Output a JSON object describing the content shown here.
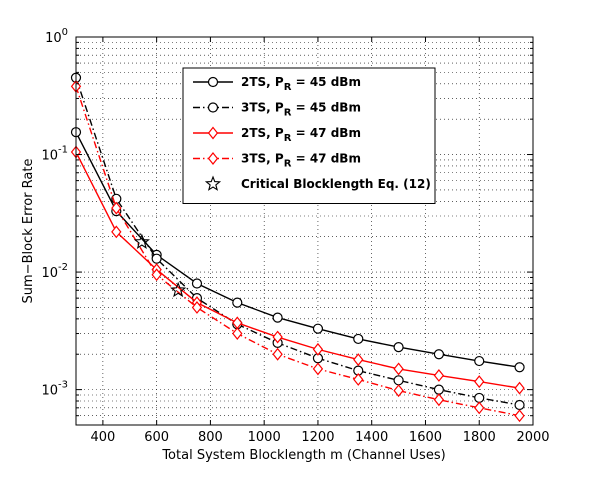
{
  "chart_data": {
    "type": "line",
    "title": "",
    "xlabel": "Total System Blocklength m (Channel Uses)",
    "ylabel": "Sum−Block Error Rate",
    "xlim": [
      300,
      2000
    ],
    "ylim": [
      0.0005,
      1
    ],
    "yscale": "log",
    "grid": true,
    "legend_position": "top-right",
    "x_ticks": [
      400,
      600,
      800,
      1000,
      1200,
      1400,
      1600,
      1800,
      2000
    ],
    "y_ticks": [
      {
        "value": 1,
        "base": "10",
        "exp": "0"
      },
      {
        "value": 0.1,
        "base": "10",
        "exp": "-1"
      },
      {
        "value": 0.01,
        "base": "10",
        "exp": "-2"
      },
      {
        "value": 0.001,
        "base": "10",
        "exp": "-3"
      }
    ],
    "series": [
      {
        "name": "2TS, P",
        "subscript": "R",
        "suffix": " = 45 dBm",
        "color": "#000000",
        "dash": "solid",
        "marker": "circle",
        "x": [
          300,
          450,
          600,
          750,
          900,
          1050,
          1200,
          1350,
          1500,
          1650,
          1800,
          1950
        ],
        "y": [
          0.155,
          0.033,
          0.014,
          0.008,
          0.0055,
          0.0041,
          0.0033,
          0.0027,
          0.0023,
          0.002,
          0.00175,
          0.00155
        ]
      },
      {
        "name": "3TS, P",
        "subscript": "R",
        "suffix": " = 45 dBm",
        "color": "#000000",
        "dash": "dashdot",
        "marker": "circle",
        "x": [
          300,
          450,
          600,
          750,
          900,
          1050,
          1200,
          1350,
          1500,
          1650,
          1800,
          1950
        ],
        "y": [
          0.45,
          0.042,
          0.013,
          0.006,
          0.0036,
          0.0025,
          0.00185,
          0.00145,
          0.0012,
          0.001,
          0.00085,
          0.00074
        ]
      },
      {
        "name": "2TS, P",
        "subscript": "R",
        "suffix": " = 47 dBm",
        "color": "#ff0000",
        "dash": "solid",
        "marker": "diamond",
        "x": [
          300,
          450,
          600,
          750,
          900,
          1050,
          1200,
          1350,
          1500,
          1650,
          1800,
          1950
        ],
        "y": [
          0.105,
          0.022,
          0.0105,
          0.0055,
          0.0037,
          0.0028,
          0.0022,
          0.0018,
          0.0015,
          0.00132,
          0.00117,
          0.00103
        ]
      },
      {
        "name": "3TS, P",
        "subscript": "R",
        "suffix": " = 47 dBm",
        "color": "#ff0000",
        "dash": "dashdot",
        "marker": "diamond",
        "x": [
          300,
          450,
          600,
          750,
          900,
          1050,
          1200,
          1350,
          1500,
          1650,
          1800,
          1950
        ],
        "y": [
          0.38,
          0.035,
          0.0095,
          0.005,
          0.003,
          0.002,
          0.0015,
          0.00122,
          0.00098,
          0.00082,
          0.0007,
          0.0006
        ]
      },
      {
        "name": "Critical Blocklength Eq. (12)",
        "color": "#000000",
        "dash": "none",
        "marker": "star",
        "x": [
          545,
          680
        ],
        "y": [
          0.018,
          0.007
        ]
      }
    ]
  }
}
